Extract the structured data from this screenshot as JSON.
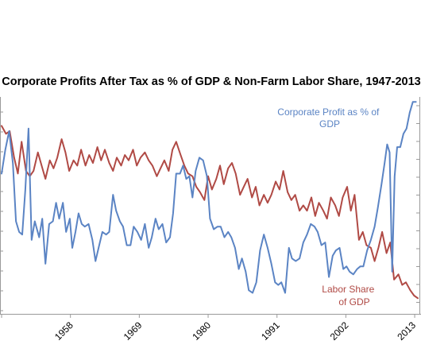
{
  "chart_data": {
    "type": "line",
    "title": "Corporate Profits After Tax as % of GDP & Non-Farm Labor Share, 1947-2013",
    "x_range": [
      1947,
      2013.5
    ],
    "x_ticks": [
      "1958",
      "1969",
      "1980",
      "1991",
      "2002",
      "2013"
    ],
    "series": [
      {
        "name": "Corporate Profit as % of GDP",
        "label_lines": [
          "Corporate Profit as % of",
          "GDP"
        ],
        "color": "#5b84c4",
        "x": [
          1947,
          1947.6,
          1948.2,
          1948.8,
          1949.3,
          1949.8,
          1950.3,
          1950.8,
          1951.3,
          1951.8,
          1952.3,
          1953,
          1953.5,
          1954,
          1954.6,
          1955.2,
          1955.7,
          1956.2,
          1956.8,
          1957.3,
          1957.9,
          1958.3,
          1958.8,
          1959.3,
          1959.8,
          1960.3,
          1960.9,
          1961.5,
          1962,
          1962.6,
          1963.1,
          1963.7,
          1964.2,
          1964.8,
          1965.3,
          1965.9,
          1966.4,
          1967,
          1967.6,
          1968.1,
          1968.7,
          1969.3,
          1969.9,
          1970.5,
          1971,
          1971.6,
          1972.1,
          1972.7,
          1973.3,
          1973.9,
          1974.4,
          1974.9,
          1975.5,
          1976,
          1976.5,
          1977,
          1977.5,
          1978,
          1978.6,
          1979.2,
          1979.8,
          1980.3,
          1980.9,
          1981.5,
          1982,
          1982.6,
          1983.2,
          1983.7,
          1984.3,
          1984.9,
          1985.4,
          1986,
          1986.5,
          1987.1,
          1987.7,
          1988.3,
          1988.9,
          1989.5,
          1990.1,
          1990.7,
          1991.2,
          1991.7,
          1992.3,
          1992.9,
          1993.4,
          1994,
          1994.6,
          1995.2,
          1995.8,
          1996.4,
          1997,
          1997.5,
          1998.1,
          1998.7,
          1999.3,
          1999.9,
          2000.4,
          2001,
          2001.6,
          2002.1,
          2002.6,
          2003.2,
          2003.8,
          2004.3,
          2004.8,
          2005.4,
          2006,
          2006.6,
          2007.1,
          2007.7,
          2008.2,
          2008.6,
          2009,
          2009.4,
          2009.8,
          2010.2,
          2010.7,
          2011.2,
          2011.7,
          2012.2,
          2012.7,
          2013.2
        ],
        "values": [
          8.7,
          9.6,
          10.3,
          9.1,
          6.9,
          6.5,
          6.4,
          8.1,
          10.4,
          6.2,
          6.9,
          6.3,
          7.0,
          5.3,
          6.8,
          6.9,
          7.6,
          7.0,
          7.6,
          6.5,
          7.0,
          5.9,
          6.5,
          7.2,
          6.8,
          6.7,
          6.8,
          6.2,
          5.4,
          6.0,
          6.5,
          6.4,
          6.5,
          7.9,
          7.3,
          6.9,
          6.7,
          6.0,
          6.0,
          6.7,
          6.5,
          6.2,
          6.8,
          5.9,
          6.3,
          7.0,
          6.6,
          6.8,
          6.1,
          6.3,
          7.2,
          8.7,
          8.7,
          9.0,
          8.5,
          8.6,
          7.8,
          8.8,
          9.3,
          9.2,
          8.6,
          7.0,
          6.6,
          6.7,
          6.7,
          6.3,
          6.5,
          6.3,
          5.9,
          5.1,
          5.5,
          5.0,
          4.3,
          4.2,
          4.6,
          5.8,
          6.4,
          5.9,
          5.3,
          4.6,
          4.5,
          4.6,
          4.2,
          5.9,
          5.5,
          5.4,
          5.5,
          6.1,
          6.4,
          6.8,
          6.7,
          6.5,
          6.0,
          6.1,
          4.8,
          5.6,
          5.8,
          5.9,
          5.1,
          5.2,
          5.0,
          4.9,
          5.1,
          5.2,
          5.2,
          5.8,
          6.2,
          6.7,
          7.4,
          8.3,
          9.1,
          9.8,
          9.5,
          5.0,
          8.6,
          9.7,
          9.7,
          10.2,
          10.4,
          11.0,
          11.4,
          11.4
        ]
      },
      {
        "name": "Labor Share of GDP",
        "label_lines": [
          "Labor Share",
          "of GDP"
        ],
        "color": "#b04a45",
        "x": [
          1947,
          1947.7,
          1948.3,
          1949,
          1949.6,
          1950.2,
          1950.9,
          1951.5,
          1952.1,
          1952.8,
          1953.4,
          1954,
          1954.7,
          1955.3,
          1955.9,
          1956.6,
          1957.2,
          1957.8,
          1958.5,
          1959.1,
          1959.7,
          1960.4,
          1961,
          1961.6,
          1962.3,
          1962.9,
          1963.5,
          1964.2,
          1964.8,
          1965.4,
          1966.1,
          1966.7,
          1967.3,
          1968,
          1968.6,
          1969.2,
          1969.9,
          1970.5,
          1971.1,
          1971.8,
          1972.4,
          1973,
          1973.7,
          1974.3,
          1974.9,
          1975.6,
          1976.2,
          1976.8,
          1977.5,
          1978.1,
          1978.7,
          1979.4,
          1980,
          1980.6,
          1981.3,
          1981.9,
          1982.5,
          1983.2,
          1983.8,
          1984.4,
          1985.1,
          1985.7,
          1986.3,
          1987,
          1987.6,
          1988.2,
          1988.9,
          1989.5,
          1990.1,
          1990.8,
          1991.4,
          1992,
          1992.7,
          1993.3,
          1993.9,
          1994.6,
          1995.2,
          1995.8,
          1996.5,
          1997.1,
          1997.7,
          1998.4,
          1999,
          1999.6,
          2000.3,
          2000.9,
          2001.5,
          2002.2,
          2002.8,
          2003.4,
          2004.1,
          2004.7,
          2005.3,
          2006,
          2006.6,
          2007.2,
          2007.8,
          2008.5,
          2009.1,
          2009.7,
          2010.4,
          2011,
          2011.6,
          2012.3,
          2012.9,
          2013.5
        ],
        "values": [
          65.5,
          65.2,
          65.3,
          64.3,
          63.7,
          64.9,
          63.8,
          63.6,
          63.8,
          64.5,
          64.0,
          63.5,
          64.2,
          63.9,
          64.3,
          65.0,
          64.5,
          63.8,
          64.2,
          64.0,
          64.6,
          64.0,
          64.4,
          64.1,
          64.7,
          64.2,
          64.6,
          64.1,
          63.8,
          64.3,
          64.0,
          64.4,
          64.2,
          64.6,
          64.0,
          64.3,
          64.5,
          64.2,
          64.0,
          63.6,
          63.9,
          64.2,
          63.8,
          64.6,
          64.9,
          64.4,
          64.0,
          63.7,
          63.6,
          63.2,
          63.0,
          62.7,
          63.6,
          63.1,
          63.5,
          64.0,
          63.3,
          63.9,
          64.1,
          63.7,
          62.9,
          63.2,
          63.5,
          62.8,
          63.2,
          62.5,
          62.9,
          62.6,
          62.9,
          63.4,
          63.1,
          63.8,
          63.0,
          62.7,
          62.9,
          62.3,
          62.5,
          62.3,
          62.8,
          62.1,
          62.6,
          62.3,
          62.0,
          62.8,
          62.5,
          62.1,
          62.8,
          63.2,
          62.3,
          62.9,
          61.2,
          61.5,
          61.0,
          60.9,
          60.4,
          60.9,
          61.5,
          60.7,
          61.1,
          59.7,
          59.9,
          59.5,
          59.6,
          59.3,
          59.1,
          59.0
        ]
      }
    ]
  }
}
